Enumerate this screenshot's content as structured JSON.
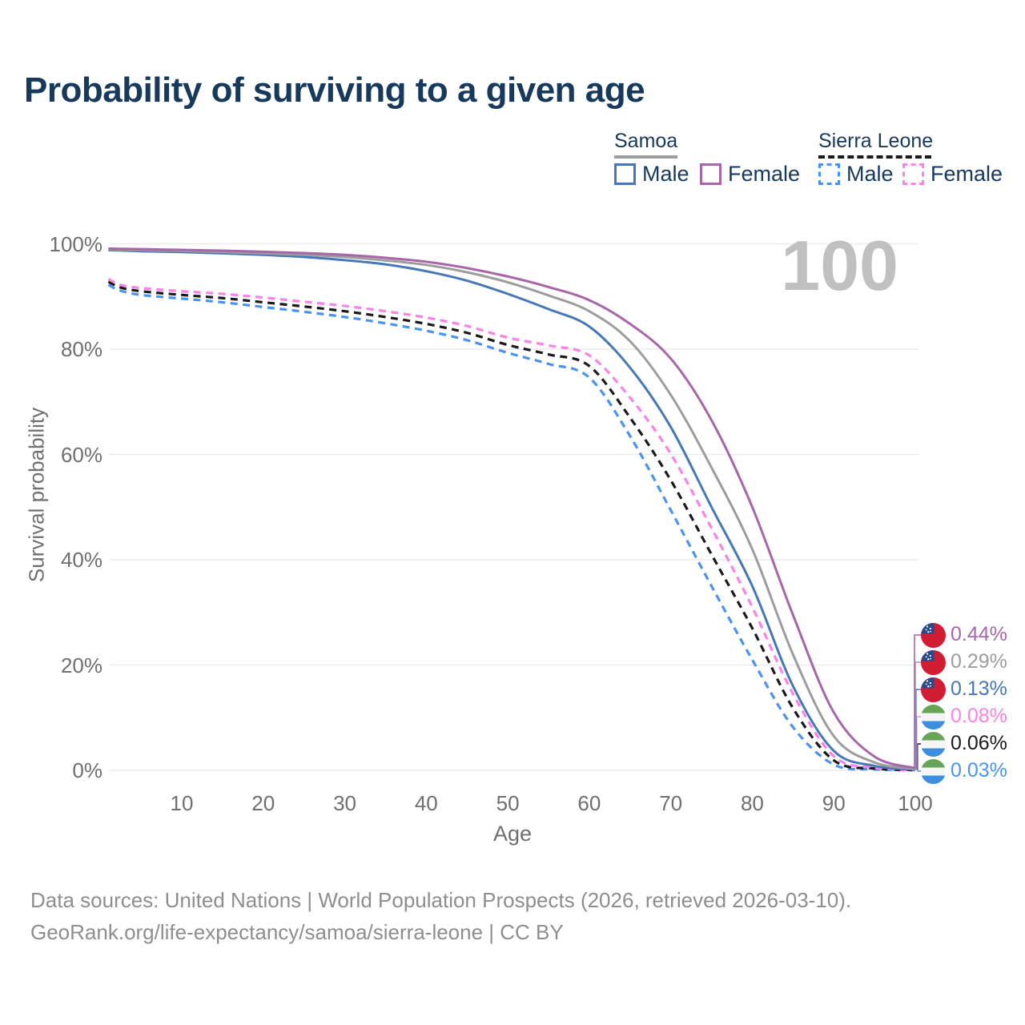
{
  "title": "Probability of surviving to a given age",
  "watermark_age": "100",
  "legend": {
    "samoa": {
      "label": "Samoa",
      "male_label": "Male",
      "female_label": "Female"
    },
    "sierra_leone": {
      "label": "Sierra Leone",
      "male_label": "Male",
      "female_label": "Female"
    }
  },
  "footer": {
    "line1": "Data sources: United Nations | World Population Prospects (2026, retrieved 2026-03-10).",
    "line2": "GeoRank.org/life-expectancy/samoa/sierra-leone | CC BY"
  },
  "colors": {
    "title_text": "#17395c",
    "axis_text": "#6f6f6f",
    "gridline": "#ebebeb",
    "watermark": "#c0c0c0",
    "footer_text": "#8e8e8e",
    "samoa_male": "#4678b8",
    "samoa_female": "#a766a9",
    "samoa_all": "#9d9d9d",
    "sierra_leone_male": "#4a94ef",
    "sierra_leone_female": "#fb82e8",
    "sierra_leone_all": "#1a1a1a",
    "flag_samoa_red": "#d21c33",
    "flag_samoa_blue": "#2b4a8b",
    "flag_samoa_star": "#ffffff",
    "flag_sl_green": "#68a457",
    "flag_sl_white": "#f5f5f5",
    "flag_sl_blue": "#3c8fdd"
  },
  "chart_data": {
    "type": "line",
    "title": "Probability of surviving to a given age",
    "xlabel": "Age",
    "ylabel": "Survival probability",
    "xlim": [
      1,
      100
    ],
    "ylim": [
      0,
      100
    ],
    "grid": "horizontal",
    "legend_position": "top-right",
    "x_ticks": [
      10,
      20,
      30,
      40,
      50,
      60,
      70,
      80,
      90,
      100
    ],
    "y_ticks": [
      {
        "value": 0,
        "label": "0%"
      },
      {
        "value": 20,
        "label": "20%"
      },
      {
        "value": 40,
        "label": "40%"
      },
      {
        "value": 60,
        "label": "60%"
      },
      {
        "value": 80,
        "label": "80%"
      },
      {
        "value": 100,
        "label": "100%"
      }
    ],
    "ages": [
      1,
      2.5,
      5,
      10,
      15,
      20,
      25,
      30,
      35,
      40,
      45,
      50,
      55,
      60,
      65,
      70,
      75,
      80,
      85,
      90,
      95,
      100
    ],
    "series": [
      {
        "id": "sierra-leone-male",
        "name": "Sierra Leone Male",
        "color_key": "sierra_leone_male",
        "dashed": true,
        "flag": "sierra_leone",
        "end_label": "0.03%",
        "label_row": 5,
        "values": [
          92.2,
          91.1,
          90.3,
          89.6,
          88.9,
          88.0,
          87.1,
          86.1,
          84.9,
          83.5,
          81.7,
          79.3,
          77.2,
          74.6,
          63.5,
          49.4,
          35.0,
          21.0,
          8.2,
          1.1,
          0.2,
          0.03
        ]
      },
      {
        "id": "sierra-leone-all",
        "name": "Sierra Leone",
        "color_key": "sierra_leone_all",
        "dashed": true,
        "flag": "sierra_leone",
        "end_label": "0.06%",
        "label_row": 4,
        "values": [
          92.8,
          91.7,
          91.0,
          90.3,
          89.7,
          88.9,
          88.1,
          87.2,
          86.1,
          84.8,
          83.1,
          80.8,
          79.0,
          76.8,
          67.0,
          55.1,
          41.0,
          27.0,
          11.8,
          1.9,
          0.35,
          0.06
        ]
      },
      {
        "id": "sierra-leone-female",
        "name": "Sierra Leone Female",
        "color_key": "sierra_leone_female",
        "dashed": true,
        "flag": "sierra_leone",
        "end_label": "0.08%",
        "label_row": 3,
        "values": [
          93.3,
          92.2,
          91.6,
          91.0,
          90.5,
          89.8,
          89.0,
          88.2,
          87.2,
          86.0,
          84.4,
          82.2,
          80.7,
          78.8,
          70.8,
          60.1,
          46.0,
          31.0,
          14.5,
          2.7,
          0.5,
          0.08
        ]
      },
      {
        "id": "samoa-male",
        "name": "Samoa Male",
        "color_key": "samoa_male",
        "dashed": false,
        "flag": "samoa",
        "end_label": "0.13%",
        "label_row": 2,
        "values": [
          98.8,
          98.75,
          98.6,
          98.45,
          98.2,
          97.9,
          97.5,
          96.9,
          96.1,
          94.8,
          93.0,
          90.5,
          87.6,
          84.3,
          76.5,
          65.2,
          50.0,
          35.0,
          16.0,
          3.7,
          0.85,
          0.13
        ]
      },
      {
        "id": "samoa-all",
        "name": "Samoa",
        "color_key": "samoa_all",
        "dashed": false,
        "flag": "samoa",
        "end_label": "0.29%",
        "label_row": 1,
        "values": [
          98.95,
          98.9,
          98.8,
          98.65,
          98.45,
          98.2,
          97.9,
          97.5,
          96.85,
          96.0,
          94.6,
          92.7,
          90.2,
          87.2,
          81.5,
          71.3,
          57.5,
          42.0,
          22.0,
          6.5,
          1.5,
          0.29
        ]
      },
      {
        "id": "samoa-female",
        "name": "Samoa Female",
        "color_key": "samoa_female",
        "dashed": false,
        "flag": "samoa",
        "end_label": "0.44%",
        "label_row": 0,
        "values": [
          99.1,
          99.05,
          99.0,
          98.85,
          98.7,
          98.5,
          98.25,
          97.9,
          97.35,
          96.6,
          95.4,
          93.8,
          91.8,
          89.3,
          84.8,
          78.2,
          66.5,
          50.0,
          29.5,
          11.0,
          2.6,
          0.44
        ]
      }
    ]
  }
}
